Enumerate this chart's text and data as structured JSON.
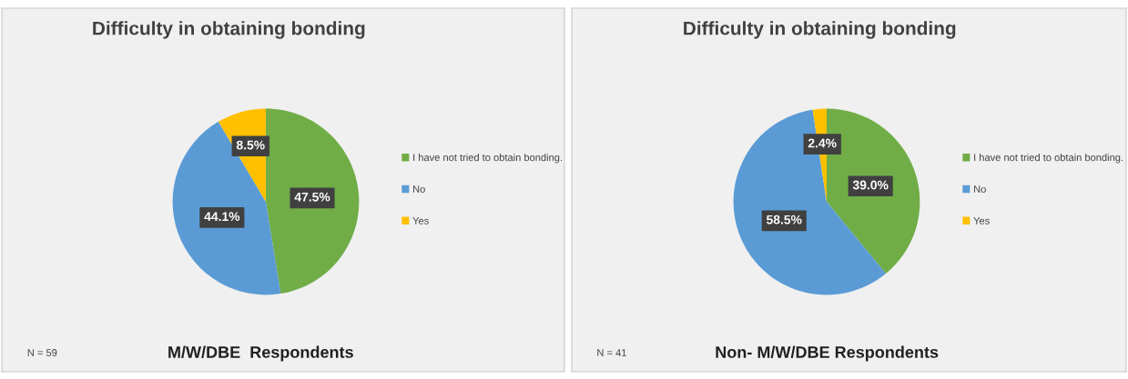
{
  "chart_data": [
    {
      "type": "pie",
      "title": "Difficulty in obtaining bonding",
      "categories": [
        "I have not tried to obtain bonding.",
        "No",
        "Yes"
      ],
      "values": [
        47.5,
        44.1,
        8.5
      ],
      "value_labels": [
        "47.5%",
        "44.1%",
        "8.5%"
      ],
      "colors": [
        "#70ad47",
        "#5b9bd5",
        "#ffc000"
      ],
      "legend": "right",
      "annotations": [
        "M/W/DBE  Respondents",
        "N = 59"
      ]
    },
    {
      "type": "pie",
      "title": "Difficulty in obtaining bonding",
      "categories": [
        "I have not tried to obtain bonding.",
        "No",
        "Yes"
      ],
      "values": [
        39.0,
        58.5,
        2.4
      ],
      "value_labels": [
        "39.0%",
        "58.5%",
        "2.4%"
      ],
      "colors": [
        "#70ad47",
        "#5b9bd5",
        "#ffc000"
      ],
      "legend": "right",
      "annotations": [
        "Non- M/W/DBE Respondents",
        "N = 41"
      ]
    }
  ]
}
